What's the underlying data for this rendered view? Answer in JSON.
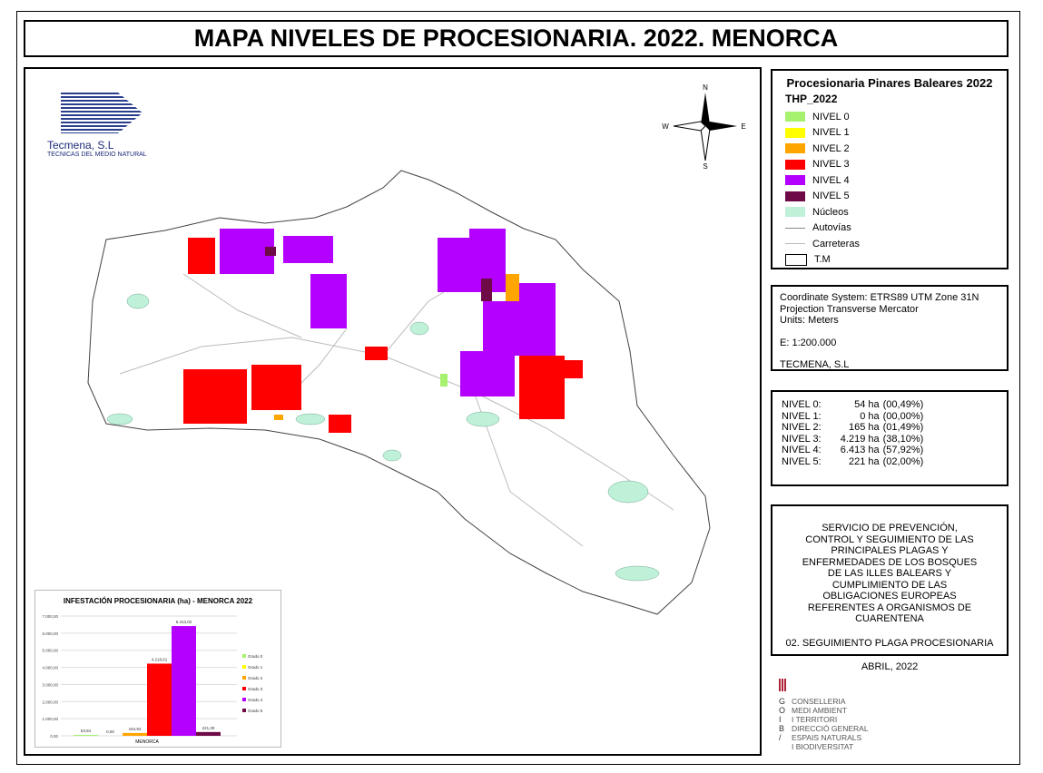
{
  "title": "MAPA NIVELES DE PROCESIONARIA. 2022. MENORCA",
  "logo": {
    "name": "Tecmena, S.L",
    "subtitle": "TECNICAS DEL MEDIO NATURAL"
  },
  "compass": {
    "n": "N",
    "s": "S",
    "e": "E",
    "w": "W"
  },
  "legend": {
    "title": "Procesionaria Pinares Baleares 2022",
    "subtitle": "THP_2022",
    "items": [
      {
        "label": "NIVEL 0",
        "color": "#a6f26e",
        "kind": "fill"
      },
      {
        "label": "NIVEL 1",
        "color": "#ffff00",
        "kind": "fill"
      },
      {
        "label": "NIVEL 2",
        "color": "#ffa500",
        "kind": "fill"
      },
      {
        "label": "NIVEL 3",
        "color": "#ff0000",
        "kind": "fill"
      },
      {
        "label": "NIVEL 4",
        "color": "#b400ff",
        "kind": "fill"
      },
      {
        "label": "NIVEL 5",
        "color": "#6e0a46",
        "kind": "fill"
      },
      {
        "label": "Núcleos",
        "color": "#bff0d8",
        "kind": "fill"
      },
      {
        "label": "Autovías",
        "color": "#888888",
        "kind": "line"
      },
      {
        "label": "Carreteras",
        "color": "#bbbbbb",
        "kind": "line"
      },
      {
        "label": "T.M",
        "color": "#ffffff",
        "kind": "fill"
      }
    ]
  },
  "coord": {
    "line1": "Coordinate System: ETRS89 UTM Zone 31N",
    "line2": "Projection Transverse Mercator",
    "line3": "Units: Meters",
    "scale": "E: 1:200.000",
    "author": "TECMENA, S.L"
  },
  "stats": [
    {
      "level": "NIVEL 0:",
      "ha": "54 ha",
      "pct": "(00,49%)"
    },
    {
      "level": "NIVEL 1:",
      "ha": "0 ha",
      "pct": "(00,00%)"
    },
    {
      "level": "NIVEL 2:",
      "ha": "165 ha",
      "pct": "(01,49%)"
    },
    {
      "level": "NIVEL 3:",
      "ha": "4.219 ha",
      "pct": "(38,10%)"
    },
    {
      "level": "NIVEL 4:",
      "ha": "6.413 ha",
      "pct": "(57,92%)"
    },
    {
      "level": "NIVEL 5:",
      "ha": "221 ha",
      "pct": "(02,00%)"
    }
  ],
  "service": {
    "text": "SERVICIO DE PREVENCIÓN, CONTROL Y SEGUIMIENTO DE LAS PRINCIPALES PLAGAS Y ENFERMEDADES DE LOS BOSQUES DE LAS ILLES BALEARS Y CUMPLIMIENTO DE LAS OBLIGACIONES EUROPEAS REFERENTES A ORGANISMOS DE CUARENTENA",
    "project": "02. SEGUIMIENTO PLAGA PROCESIONARIA",
    "date": "ABRIL, 2022"
  },
  "goib": {
    "letters": [
      "G",
      "O",
      "I",
      "B",
      "/",
      ""
    ],
    "lines": [
      "CONSELLERIA",
      "MEDI AMBIENT",
      "I TERRITORI",
      "DIRECCIÓ GENERAL",
      "ESPAIS NATURALS",
      "I BIODIVERSITAT"
    ]
  },
  "chart_data": {
    "type": "bar",
    "title": "INFESTACIÓN PROCESIONARIA (ha) - MENORCA 2022",
    "categories": [
      "MENORCA"
    ],
    "ylim": [
      0,
      7000
    ],
    "yticks": [
      "0,00",
      "1.000,00",
      "2.000,00",
      "3.000,00",
      "4.000,00",
      "5.000,00",
      "6.000,00",
      "7.000,00"
    ],
    "grid": true,
    "legend_position": "right",
    "series": [
      {
        "name": "Grado 0",
        "values": [
          53.84
        ],
        "label": "53,84",
        "color": "#a6f26e"
      },
      {
        "name": "Grado 1",
        "values": [
          0
        ],
        "label": "0,00",
        "color": "#ffff00"
      },
      {
        "name": "Grado 2",
        "values": [
          164.94
        ],
        "label": "164,94",
        "color": "#ffa500"
      },
      {
        "name": "Grado 3",
        "values": [
          4218.61
        ],
        "label": "4.218,61",
        "color": "#ff0000"
      },
      {
        "name": "Grado 4",
        "values": [
          6413.02
        ],
        "label": "6.413,02",
        "color": "#b400ff"
      },
      {
        "name": "Grado 5",
        "values": [
          221.3
        ],
        "label": "221,30",
        "color": "#6e0a46"
      }
    ]
  }
}
